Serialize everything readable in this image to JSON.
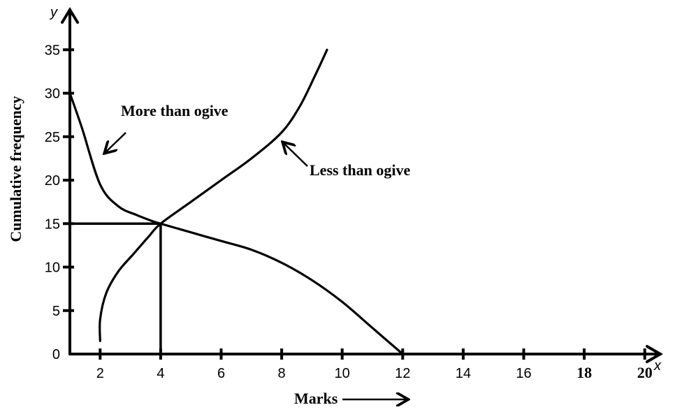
{
  "chart_data": {
    "type": "line",
    "xlabel": "Marks",
    "ylabel": "Cumulative frequency",
    "x_axis_letter": "x",
    "y_axis_letter": "y",
    "xlim": [
      1,
      21
    ],
    "ylim": [
      0,
      35
    ],
    "x_ticks": [
      2,
      4,
      6,
      8,
      10,
      12,
      14,
      16,
      18,
      20
    ],
    "y_ticks": [
      0,
      5,
      10,
      15,
      20,
      25,
      30,
      35
    ],
    "grid": false,
    "series": [
      {
        "name": "More than ogive",
        "x": [
          1,
          1.4,
          2,
          2.6,
          3.2,
          3.8,
          4,
          5,
          6,
          7,
          8,
          9,
          10,
          11,
          12
        ],
        "y": [
          30,
          26,
          19.5,
          17,
          16,
          15.2,
          15,
          14,
          13,
          12,
          10.5,
          8.5,
          6,
          3,
          0
        ]
      },
      {
        "name": "Less than ogive",
        "x": [
          2,
          2,
          2.2,
          2.6,
          3.1,
          3.6,
          4,
          5,
          6,
          7,
          8,
          8.6,
          9.1,
          9.5
        ],
        "y": [
          1.5,
          4,
          7,
          9.5,
          11.5,
          13.5,
          15,
          17.5,
          20,
          22.5,
          25.5,
          28.5,
          32,
          35
        ]
      }
    ],
    "guide_lines": {
      "intersection_x": 4,
      "intersection_y": 15
    },
    "annotations": [
      {
        "text": "More than ogive",
        "target_series": "More than ogive"
      },
      {
        "text": "Less than ogive",
        "target_series": "Less than ogive"
      }
    ]
  }
}
